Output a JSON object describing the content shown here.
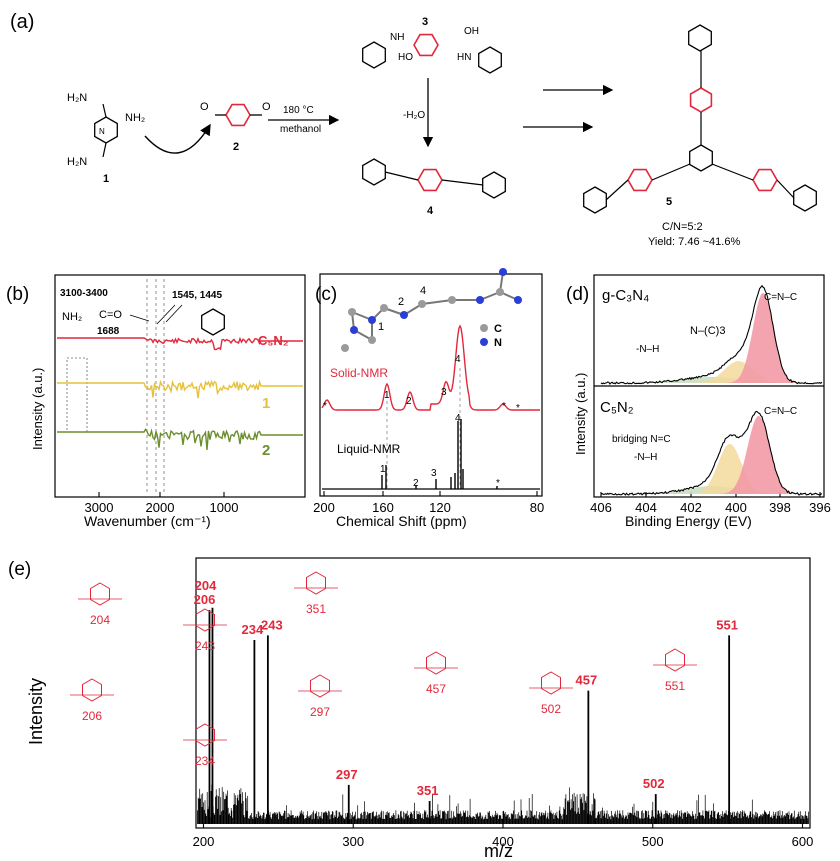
{
  "panel_labels": {
    "a": "(a)",
    "b": "(b)",
    "c": "(c)",
    "d": "(d)",
    "e": "(e)"
  },
  "scheme": {
    "labels": {
      "compound1": "1",
      "compound2": "2",
      "compound3": "3",
      "compound4": "4",
      "compound5": "5"
    },
    "reactant1_groups": [
      "H₂N",
      "NH₂",
      "H₂N"
    ],
    "intermediate3_groups": [
      "NH",
      "OH",
      "HO",
      "HN"
    ],
    "condition_temp": "180 °C",
    "condition_solvent": "methanol",
    "dehydration": "-H₂O",
    "product_ratio": "C/N=5:2",
    "product_yield": "Yield: 7.46 ~41.6%",
    "colors": {
      "ring_highlight": "#e2293b",
      "black": "#000000"
    }
  },
  "panel_b": {
    "type": "line",
    "xlabel": "Wavenumber (cm⁻¹)",
    "ylabel": "Intensity (a.u.)",
    "xticks": [
      "3000",
      "2000",
      "1000"
    ],
    "annotations": {
      "range": "3100-3400",
      "nh2": "NH₂",
      "co": "C=O",
      "co_wavenumber": "1688",
      "triazine": "1545, 1445"
    },
    "series": [
      {
        "name": "C₅N₂",
        "color": "#e2293b"
      },
      {
        "name": "1",
        "color": "#e5c13c"
      },
      {
        "name": "2",
        "color": "#6a8f2e"
      }
    ]
  },
  "panel_c": {
    "type": "line",
    "xlabel": "Chemical Shift (ppm)",
    "xticks": [
      "200",
      "160",
      "120",
      "80"
    ],
    "series": [
      {
        "name": "Solid-NMR",
        "color": "#e2293b"
      },
      {
        "name": "Liquid-NMR",
        "color": "#000000"
      }
    ],
    "peak_labels": [
      "1",
      "2",
      "3",
      "4"
    ],
    "spinning_marker": "*",
    "legend": {
      "carbon": "C",
      "nitrogen": "N"
    },
    "atom_numbers": [
      "1",
      "2",
      "4"
    ]
  },
  "panel_d": {
    "type": "line",
    "xlabel": "Binding Energy (EV)",
    "ylabel": "Intensity (a.u.)",
    "xticks": [
      "406",
      "404",
      "402",
      "400",
      "398",
      "396"
    ],
    "top": {
      "sample": "g-C₃N₄",
      "peaks": [
        "C=N–C",
        "N–(C)3",
        "-N–H"
      ]
    },
    "bottom": {
      "sample": "C₅N₂",
      "peaks": [
        "C=N–C",
        "bridging N=C",
        "-N–H"
      ]
    },
    "colors": {
      "main_peak": "#f29aa6",
      "secondary_peak": "#f3d99c",
      "minor_peak": "#c8dcc0"
    }
  },
  "chart_data": {
    "type": "bar",
    "xlabel": "m/z",
    "ylabel": "Intensity",
    "xticks": [
      "200",
      "300",
      "400",
      "500",
      "600"
    ],
    "xlim": [
      195,
      605
    ],
    "labeled_peaks": [
      {
        "mz": 204,
        "label": "204",
        "rel": 0.93
      },
      {
        "mz": 206,
        "label": "206",
        "rel": 0.94
      },
      {
        "mz": 234,
        "label": "234",
        "rel": 0.8
      },
      {
        "mz": 243,
        "label": "243",
        "rel": 0.82
      },
      {
        "mz": 297,
        "label": "297",
        "rel": 0.17
      },
      {
        "mz": 351,
        "label": "351",
        "rel": 0.1
      },
      {
        "mz": 457,
        "label": "457",
        "rel": 0.58
      },
      {
        "mz": 502,
        "label": "502",
        "rel": 0.13
      },
      {
        "mz": 551,
        "label": "551",
        "rel": 0.82
      }
    ],
    "fragment_labels": [
      "204",
      "243",
      "351",
      "206",
      "234",
      "297",
      "457",
      "502",
      "551"
    ],
    "fragment_color": "#e2293b"
  }
}
